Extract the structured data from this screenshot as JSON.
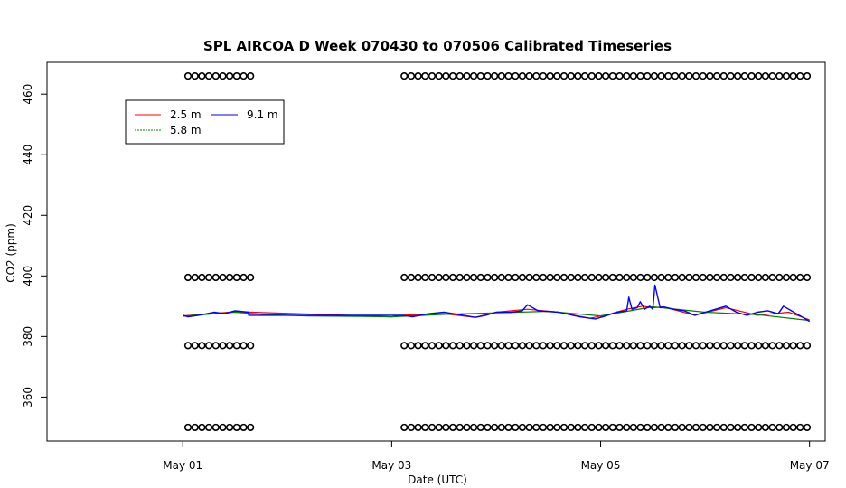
{
  "chart_data": {
    "type": "line",
    "title": "SPL AIRCOA D  Week 070430 to 070506  Calibrated Timeseries",
    "xlabel": "Date (UTC)",
    "ylabel": "CO2 (ppm)",
    "x_ticks": [
      "May 01",
      "May 03",
      "May 05",
      "May 07"
    ],
    "x_tick_values": [
      1,
      3,
      5,
      7
    ],
    "xlim": [
      -0.3,
      7.15
    ],
    "y_ticks": [
      "360",
      "380",
      "400",
      "420",
      "440",
      "460"
    ],
    "y_tick_values": [
      360,
      380,
      400,
      420,
      440,
      460
    ],
    "ylim": [
      345.5,
      470.5
    ],
    "grid": false,
    "legend_position": "top-left",
    "series": [
      {
        "name": "2.5 m",
        "color": "#ff0000",
        "x": [
          1.0,
          1.5,
          3.0,
          3.1,
          3.5,
          3.8,
          4.0,
          4.3,
          4.6,
          4.9,
          5.1,
          5.25,
          5.4,
          5.5,
          5.6,
          5.9,
          6.2,
          6.5,
          6.8,
          7.0
        ],
        "y": [
          386.8,
          388.2,
          386.5,
          387.0,
          387.5,
          386.3,
          388.0,
          389.0,
          388.0,
          386.0,
          387.5,
          389.0,
          390.0,
          389.5,
          389.8,
          387.0,
          389.5,
          387.0,
          388.0,
          385.5
        ]
      },
      {
        "name": "5.8 m",
        "color": "#008000",
        "x": [
          1.0,
          1.5,
          1.8,
          2.2,
          2.7,
          3.0,
          3.5,
          4.0,
          4.5,
          5.0,
          5.5,
          6.0,
          6.5,
          7.0
        ],
        "y": [
          386.7,
          388.0,
          387.2,
          386.8,
          386.6,
          386.5,
          387.3,
          387.8,
          388.3,
          386.8,
          389.8,
          388.0,
          387.2,
          385.3
        ]
      },
      {
        "name": "9.1 m",
        "color": "#0000ff",
        "x": [
          1.0,
          1.05,
          1.15,
          1.3,
          1.4,
          1.5,
          1.63,
          1.63,
          3.1,
          3.2,
          3.35,
          3.5,
          3.65,
          3.8,
          3.9,
          4.0,
          4.15,
          4.25,
          4.3,
          4.4,
          4.6,
          4.8,
          4.95,
          5.05,
          5.15,
          5.25,
          5.27,
          5.3,
          5.35,
          5.38,
          5.42,
          5.47,
          5.5,
          5.52,
          5.57,
          5.6,
          5.7,
          5.8,
          5.9,
          6.0,
          6.1,
          6.2,
          6.3,
          6.4,
          6.5,
          6.6,
          6.7,
          6.75,
          6.85,
          6.95,
          7.0
        ],
        "y": [
          387.0,
          386.5,
          387.0,
          388.0,
          387.5,
          388.5,
          388.0,
          387.0,
          387.0,
          386.5,
          387.5,
          388.0,
          387.2,
          386.3,
          387.0,
          388.0,
          388.0,
          388.5,
          390.5,
          388.5,
          388.0,
          386.5,
          385.8,
          386.8,
          388.0,
          388.5,
          393.0,
          389.0,
          389.5,
          391.5,
          389.0,
          390.0,
          389.0,
          397.0,
          389.5,
          389.8,
          389.0,
          388.5,
          387.0,
          388.0,
          389.0,
          390.0,
          388.0,
          387.0,
          388.0,
          388.5,
          387.5,
          390.0,
          388.0,
          386.0,
          385.0
        ]
      },
      {
        "name": "",
        "type": "scatter",
        "marker": "open-circle",
        "color": "#000000",
        "x_segments": [
          [
            1.05,
            1.65
          ],
          [
            3.12,
            7.0
          ]
        ],
        "levels": [
          466,
          399.5,
          377,
          350
        ]
      }
    ]
  }
}
